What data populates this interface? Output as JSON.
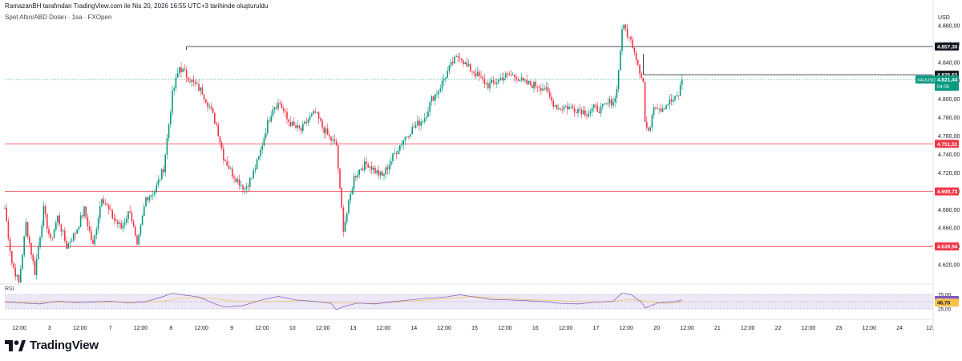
{
  "header": {
    "author_line": "RamazanBH tarafından TradingView.com ile Nis 20, 2026 16:55 UTC+3 tarihinde oluşturuldu",
    "symbol_line": "Spot Altın/ABD Doları · 1sa · FXOpen"
  },
  "rsi": {
    "label": "RSI",
    "levels": [
      75,
      50,
      25
    ],
    "axis_labels": [
      "75,00",
      "50,00",
      "25,00"
    ],
    "value_rsi": "55,62",
    "value_ma": "46,70",
    "colors": {
      "rsi": "#7e57c2",
      "ma": "#f5c24b",
      "band": "#ede7f6"
    }
  },
  "logo": {
    "text": "TradingView",
    "icon": "tradingview-logo-icon"
  },
  "chart_data": {
    "type": "candlestick",
    "interval": "1sa",
    "currency": "USD",
    "ylim": [
      4600,
      4900
    ],
    "y_ticks": [
      4620,
      4640,
      4660,
      4680,
      4700,
      4720,
      4740,
      4760,
      4780,
      4800,
      4820,
      4840,
      4860,
      4880
    ],
    "y_tick_labels": [
      "4.620,00",
      "4.640,00",
      "4.660,00",
      "4.680,00",
      "4.700,00",
      "4.720,00",
      "4.740,00",
      "4.760,00",
      "4.780,00",
      "4.800,00",
      "4.820,00",
      "4.840,00",
      "4.860,00",
      "4.880,00"
    ],
    "x_tick_labels": [
      "12:00",
      "3",
      "12:00",
      "7",
      "12:00",
      "8",
      "12:00",
      "9",
      "12:00",
      "10",
      "12:00",
      "13",
      "12:00",
      "14",
      "12:00",
      "15",
      "12:00",
      "16",
      "12:00",
      "17",
      "12:00",
      "20",
      "12:00",
      "21",
      "12:00",
      "22",
      "12:00",
      "23",
      "12:00",
      "24",
      "12:"
    ],
    "current_price": {
      "value": 4821.44,
      "label": "4.821,44",
      "symbol": "XAUUSD",
      "countdown": "04:05"
    },
    "levels": [
      {
        "value": 4857.3,
        "label": "4.857,30",
        "color": "#131722"
      },
      {
        "value": 4826.62,
        "label": "4.826,62",
        "color": "#131722"
      },
      {
        "value": 4751.51,
        "label": "4.751,51",
        "color": "#f23645"
      },
      {
        "value": 4699.73,
        "label": "4.699,73",
        "color": "#f23645"
      },
      {
        "value": 4639.94,
        "label": "4.639,94",
        "color": "#f23645"
      }
    ],
    "colors": {
      "up": "#089981",
      "down": "#f23645",
      "last_price": "#089981"
    },
    "waypoints": [
      [
        0,
        4682
      ],
      [
        4,
        4622
      ],
      [
        8,
        4600
      ],
      [
        12,
        4665
      ],
      [
        17,
        4612
      ],
      [
        22,
        4680
      ],
      [
        26,
        4645
      ],
      [
        30,
        4672
      ],
      [
        35,
        4640
      ],
      [
        40,
        4655
      ],
      [
        45,
        4680
      ],
      [
        50,
        4640
      ],
      [
        55,
        4695
      ],
      [
        60,
        4675
      ],
      [
        66,
        4660
      ],
      [
        71,
        4680
      ],
      [
        75,
        4638
      ],
      [
        80,
        4693
      ],
      [
        85,
        4700
      ],
      [
        90,
        4725
      ],
      [
        95,
        4805
      ],
      [
        99,
        4835
      ],
      [
        103,
        4826
      ],
      [
        107,
        4817
      ],
      [
        112,
        4808
      ],
      [
        116,
        4792
      ],
      [
        120,
        4772
      ],
      [
        124,
        4738
      ],
      [
        128,
        4722
      ],
      [
        132,
        4712
      ],
      [
        136,
        4703
      ],
      [
        140,
        4715
      ],
      [
        144,
        4736
      ],
      [
        148,
        4767
      ],
      [
        152,
        4792
      ],
      [
        156,
        4796
      ],
      [
        160,
        4778
      ],
      [
        164,
        4770
      ],
      [
        168,
        4766
      ],
      [
        172,
        4778
      ],
      [
        176,
        4785
      ],
      [
        180,
        4770
      ],
      [
        184,
        4758
      ],
      [
        188,
        4750
      ],
      [
        190,
        4700
      ],
      [
        192,
        4660
      ],
      [
        194,
        4676
      ],
      [
        198,
        4715
      ],
      [
        202,
        4726
      ],
      [
        206,
        4730
      ],
      [
        210,
        4722
      ],
      [
        214,
        4716
      ],
      [
        218,
        4730
      ],
      [
        222,
        4744
      ],
      [
        226,
        4756
      ],
      [
        230,
        4766
      ],
      [
        234,
        4773
      ],
      [
        238,
        4780
      ],
      [
        242,
        4800
      ],
      [
        246,
        4810
      ],
      [
        250,
        4826
      ],
      [
        254,
        4840
      ],
      [
        258,
        4848
      ],
      [
        262,
        4835
      ],
      [
        266,
        4830
      ],
      [
        270,
        4822
      ],
      [
        274,
        4815
      ],
      [
        278,
        4818
      ],
      [
        282,
        4824
      ],
      [
        286,
        4826
      ],
      [
        290,
        4825
      ],
      [
        294,
        4818
      ],
      [
        298,
        4816
      ],
      [
        302,
        4815
      ],
      [
        306,
        4812
      ],
      [
        310,
        4798
      ],
      [
        314,
        4790
      ],
      [
        318,
        4792
      ],
      [
        322,
        4790
      ],
      [
        326,
        4789
      ],
      [
        330,
        4785
      ],
      [
        334,
        4790
      ],
      [
        338,
        4789
      ],
      [
        342,
        4795
      ],
      [
        346,
        4800
      ],
      [
        348,
        4830
      ],
      [
        350,
        4878
      ],
      [
        352,
        4876
      ],
      [
        354,
        4866
      ],
      [
        356,
        4860
      ],
      [
        358,
        4846
      ],
      [
        360,
        4832
      ],
      [
        362,
        4819
      ],
      [
        363,
        4775
      ],
      [
        365,
        4762
      ],
      [
        368,
        4795
      ],
      [
        372,
        4790
      ],
      [
        376,
        4796
      ],
      [
        380,
        4800
      ],
      [
        382,
        4805
      ],
      [
        384,
        4821.44
      ]
    ],
    "rsi_range": [
      0,
      100
    ],
    "rsi_series_points": [
      [
        0,
        50
      ],
      [
        10,
        45
      ],
      [
        20,
        42
      ],
      [
        30,
        52
      ],
      [
        40,
        47
      ],
      [
        50,
        49
      ],
      [
        60,
        52
      ],
      [
        70,
        45
      ],
      [
        80,
        50
      ],
      [
        90,
        68
      ],
      [
        95,
        80
      ],
      [
        100,
        74
      ],
      [
        110,
        66
      ],
      [
        120,
        40
      ],
      [
        125,
        31
      ],
      [
        135,
        36
      ],
      [
        145,
        55
      ],
      [
        155,
        68
      ],
      [
        165,
        56
      ],
      [
        175,
        51
      ],
      [
        185,
        44
      ],
      [
        188,
        22
      ],
      [
        192,
        33
      ],
      [
        200,
        45
      ],
      [
        210,
        42
      ],
      [
        220,
        50
      ],
      [
        230,
        56
      ],
      [
        240,
        62
      ],
      [
        250,
        66
      ],
      [
        258,
        74
      ],
      [
        266,
        66
      ],
      [
        275,
        58
      ],
      [
        285,
        56
      ],
      [
        295,
        54
      ],
      [
        305,
        50
      ],
      [
        315,
        44
      ],
      [
        325,
        42
      ],
      [
        335,
        48
      ],
      [
        345,
        52
      ],
      [
        350,
        80
      ],
      [
        355,
        75
      ],
      [
        361,
        48
      ],
      [
        363,
        28
      ],
      [
        370,
        45
      ],
      [
        380,
        50
      ],
      [
        384,
        55.62
      ]
    ],
    "rsi_ma_points": [
      [
        0,
        47
      ],
      [
        40,
        48
      ],
      [
        80,
        48
      ],
      [
        90,
        52
      ],
      [
        100,
        62
      ],
      [
        115,
        63
      ],
      [
        130,
        52
      ],
      [
        150,
        50
      ],
      [
        170,
        54
      ],
      [
        190,
        45
      ],
      [
        210,
        44
      ],
      [
        230,
        52
      ],
      [
        250,
        60
      ],
      [
        265,
        68
      ],
      [
        280,
        62
      ],
      [
        300,
        56
      ],
      [
        320,
        52
      ],
      [
        340,
        48
      ],
      [
        355,
        58
      ],
      [
        365,
        50
      ],
      [
        375,
        44
      ],
      [
        384,
        46.7
      ]
    ]
  }
}
